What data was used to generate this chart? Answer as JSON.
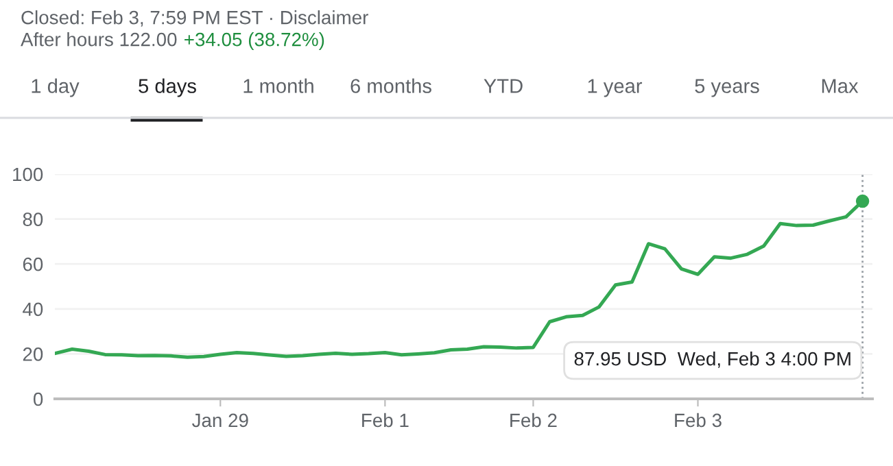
{
  "chart_data": {
    "type": "line",
    "title": "Closed: Feb 3, 7:59 PM EST · Disclaimer",
    "subtitle": "After hours 122.00",
    "annotations": [
      "+34.05 (38.72%)",
      "1 day",
      "5 days",
      "1 month",
      "6 months",
      "YTD",
      "1 year",
      "5 years",
      "Max",
      "87.95 USD  Wed, Feb 3 4:00 PM"
    ],
    "categories": [
      null,
      null,
      null,
      null,
      null,
      null,
      null,
      null,
      null,
      null,
      "Jan 29",
      null,
      null,
      null,
      null,
      null,
      null,
      null,
      null,
      null,
      "Feb 1",
      null,
      null,
      null,
      null,
      null,
      null,
      null,
      null,
      "Feb 2",
      null,
      null,
      null,
      null,
      null,
      null,
      null,
      null,
      null,
      "Feb 3",
      null,
      null,
      null,
      null,
      null,
      null,
      null,
      null,
      null,
      null
    ],
    "series": [
      {
        "color": "#34a853",
        "values": [
          20.3,
          22.1,
          21.2,
          19.7,
          19.6,
          19.2,
          19.3,
          19.1,
          18.5,
          18.8,
          19.8,
          20.6,
          20.2,
          19.5,
          18.9,
          19.2,
          19.8,
          20.3,
          19.8,
          20.1,
          20.6,
          19.6,
          20.0,
          20.5,
          21.8,
          22.1,
          23.2,
          23.0,
          22.6,
          22.9,
          34.3,
          36.5,
          37.1,
          40.9,
          50.7,
          52.0,
          69.0,
          66.7,
          57.8,
          55.4,
          63.2,
          62.6,
          64.3,
          68.0,
          78.0,
          77.1,
          77.3,
          79.2,
          81.0,
          87.95
        ]
      }
    ],
    "ylim": [
      0,
      100
    ],
    "yticks": [
      0,
      20,
      40,
      60,
      80,
      100
    ],
    "grid": "y",
    "legend": false
  }
}
